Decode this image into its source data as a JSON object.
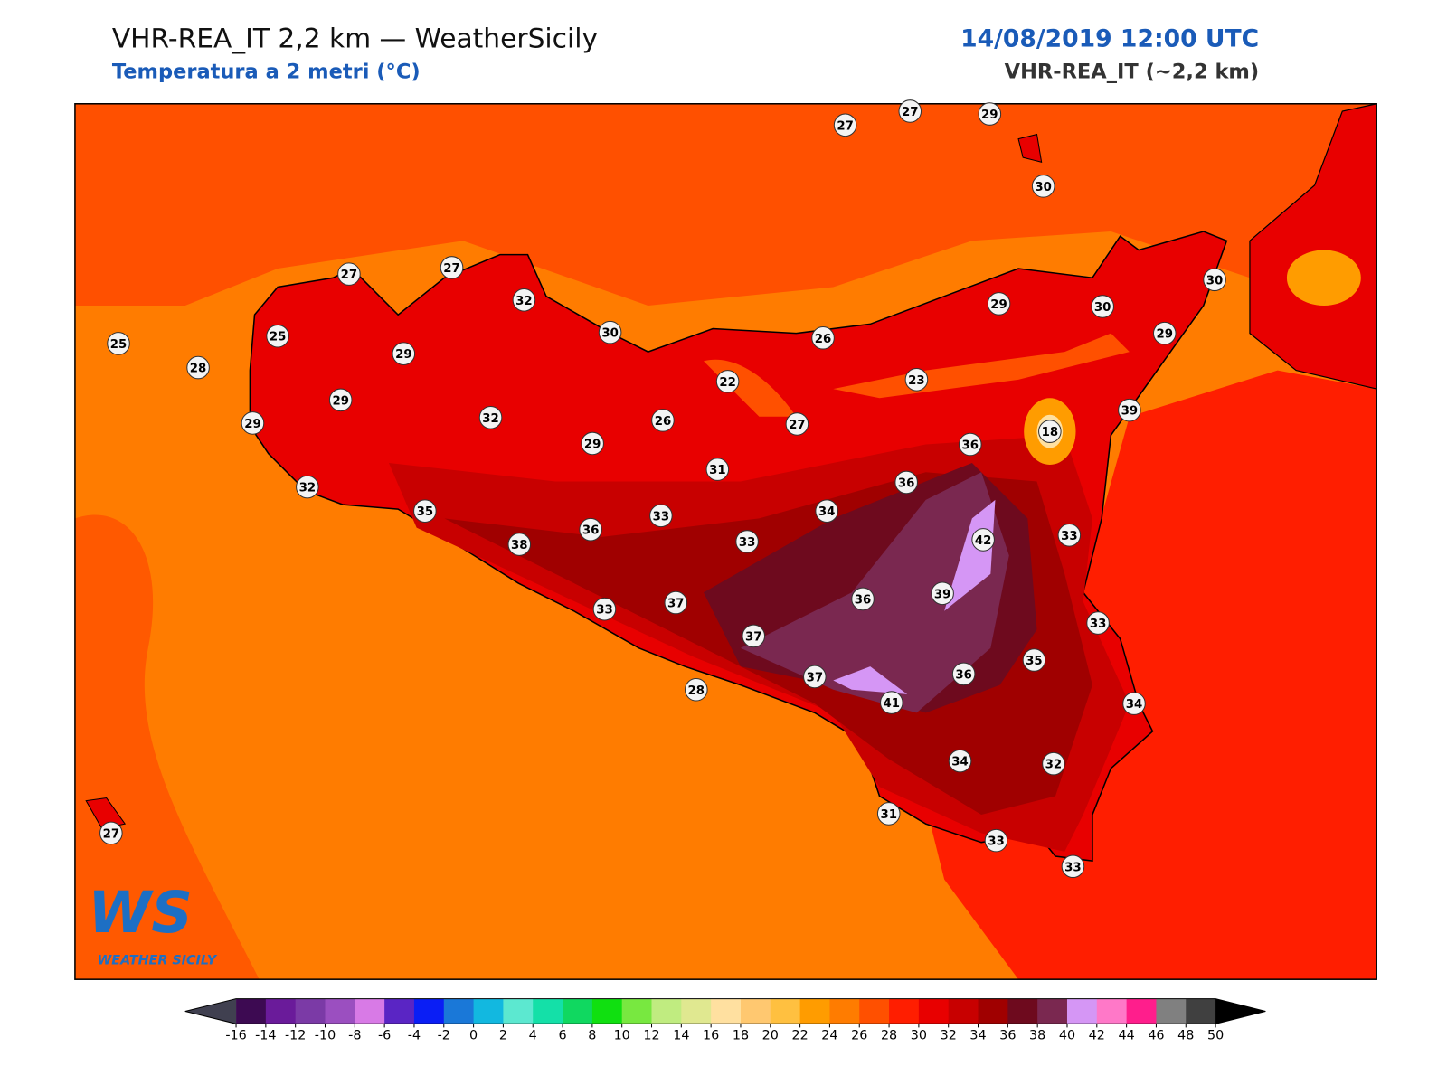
{
  "header": {
    "title": "VHR-REA_IT 2,2 km — WeatherSicily",
    "subtitle": "Temperatura a 2 metri (°C)",
    "datetime": "14/08/2019 12:00 UTC",
    "model": "VHR-REA_IT (~2,2 km)"
  },
  "stations": [
    27,
    27,
    29,
    30,
    27,
    27,
    32,
    25,
    25,
    28,
    29,
    30,
    26,
    29,
    30,
    30,
    29,
    29,
    29,
    22,
    23,
    32,
    26,
    27,
    39,
    18,
    29,
    31,
    36,
    32,
    36,
    35,
    34,
    33,
    36,
    38,
    33,
    42,
    33,
    39,
    36,
    37,
    33,
    33,
    37,
    35,
    37,
    36,
    28,
    41,
    34,
    34,
    32,
    31,
    33,
    33,
    27
  ],
  "colorbar": {
    "ticks": [
      -16,
      -14,
      -12,
      -10,
      -8,
      -6,
      -4,
      -2,
      0,
      2,
      4,
      6,
      8,
      10,
      12,
      14,
      16,
      18,
      20,
      22,
      24,
      26,
      28,
      30,
      32,
      34,
      36,
      38,
      40,
      42,
      44,
      46,
      48,
      50
    ],
    "colors": [
      "#3d0a52",
      "#6a1b9a",
      "#7b3aa6",
      "#9b4fc0",
      "#d87ae6",
      "#5a25c4",
      "#0a1ef5",
      "#1a78d8",
      "#12b8e0",
      "#5ce8d0",
      "#14e0a8",
      "#10d860",
      "#10e010",
      "#78e840",
      "#c0ec80",
      "#e0e890",
      "#ffe0a0",
      "#ffc870",
      "#ffc040",
      "#ff9c00",
      "#ff7c00",
      "#ff5000",
      "#ff1e00",
      "#e80000",
      "#c80000",
      "#a00000",
      "#6e0a1e",
      "#7a2850",
      "#d596f5",
      "#ff78c8",
      "#ff1e8c",
      "#808080",
      "#404040"
    ],
    "under_color": "#404050",
    "over_color": "#000000"
  },
  "logo": {
    "mark": "WS",
    "text": "WEATHER SICILY"
  }
}
